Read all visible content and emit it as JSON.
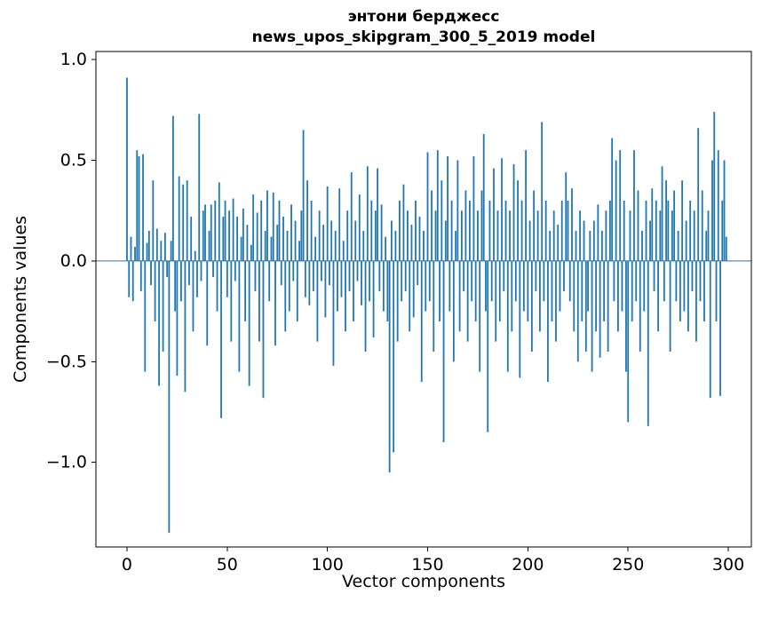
{
  "chart": {
    "title_line1": "энтони берджесс",
    "title_line2": "news_upos_skipgram_300_5_2019 model",
    "xlabel": "Vector components",
    "ylabel": "Components values"
  },
  "chart_data": {
    "type": "bar",
    "title": "энтони берджесс\nnews_upos_skipgram_300_5_2019 model",
    "xlabel": "Vector components",
    "ylabel": "Components values",
    "bar_color": "#1f77b4",
    "xlim": [
      -15.5,
      311.5
    ],
    "ylim": [
      -1.42,
      1.04
    ],
    "xticks": [
      0,
      50,
      100,
      150,
      200,
      250,
      300
    ],
    "yticks": [
      1.0,
      0.5,
      0.0,
      -0.5,
      -1.0
    ],
    "x_start": 0,
    "values": [
      0.91,
      -0.18,
      0.12,
      -0.2,
      0.07,
      0.55,
      0.52,
      -0.15,
      0.53,
      -0.55,
      0.09,
      0.15,
      -0.12,
      0.4,
      -0.3,
      0.16,
      -0.62,
      0.1,
      -0.45,
      0.14,
      -0.08,
      -1.35,
      0.1,
      0.72,
      -0.25,
      -0.57,
      0.42,
      -0.2,
      0.38,
      -0.65,
      0.4,
      -0.12,
      0.22,
      -0.35,
      0.05,
      -0.18,
      0.73,
      -0.1,
      0.25,
      0.28,
      -0.42,
      0.15,
      0.28,
      -0.08,
      0.3,
      -0.25,
      0.39,
      -0.78,
      0.22,
      0.3,
      -0.18,
      0.25,
      -0.4,
      0.31,
      -0.1,
      0.22,
      -0.55,
      0.12,
      0.26,
      -0.3,
      0.18,
      -0.62,
      0.08,
      0.33,
      -0.15,
      0.24,
      -0.4,
      0.3,
      -0.68,
      0.15,
      0.35,
      -0.2,
      0.12,
      0.34,
      -0.42,
      0.18,
      0.3,
      -0.12,
      0.22,
      -0.35,
      0.15,
      -0.25,
      0.28,
      -0.1,
      0.2,
      -0.3,
      0.1,
      0.25,
      0.65,
      -0.18,
      0.4,
      -0.22,
      0.3,
      -0.15,
      0.12,
      -0.4,
      0.25,
      -0.1,
      0.18,
      -0.28,
      0.37,
      -0.12,
      0.2,
      -0.52,
      0.15,
      -0.25,
      0.36,
      -0.18,
      0.1,
      -0.35,
      0.25,
      -0.15,
      0.44,
      -0.3,
      0.2,
      -0.1,
      0.33,
      -0.22,
      0.15,
      -0.45,
      0.47,
      -0.2,
      0.3,
      -0.38,
      0.25,
      0.46,
      -0.15,
      0.28,
      -0.25,
      0.12,
      -0.3,
      -1.05,
      0.2,
      -0.95,
      0.15,
      -0.4,
      0.3,
      -0.2,
      0.38,
      -0.15,
      0.25,
      -0.35,
      0.18,
      -0.28,
      0.3,
      -0.12,
      0.22,
      -0.6,
      0.15,
      -0.25,
      0.54,
      -0.2,
      0.35,
      -0.45,
      0.25,
      0.55,
      -0.3,
      0.4,
      -0.9,
      0.2,
      0.52,
      -0.25,
      0.3,
      -0.5,
      0.15,
      0.5,
      -0.35,
      0.25,
      -0.15,
      0.35,
      -0.4,
      0.3,
      -0.2,
      0.52,
      -0.3,
      0.25,
      -0.55,
      0.35,
      0.63,
      -0.25,
      -0.85,
      0.3,
      -0.2,
      0.46,
      -0.4,
      0.25,
      -0.3,
      0.51,
      -0.15,
      0.3,
      -0.55,
      0.25,
      -0.35,
      0.48,
      -0.2,
      0.4,
      -0.58,
      0.3,
      -0.25,
      0.55,
      -0.3,
      0.2,
      -0.45,
      0.35,
      -0.15,
      0.25,
      -0.35,
      0.69,
      -0.2,
      0.3,
      -0.6,
      0.15,
      -0.3,
      0.25,
      -0.4,
      0.18,
      -0.25,
      0.3,
      -0.15,
      0.44,
      0.3,
      -0.2,
      0.36,
      -0.35,
      0.15,
      -0.5,
      0.25,
      -0.3,
      0.2,
      -0.45,
      -0.25,
      0.15,
      -0.55,
      0.2,
      -0.35,
      0.28,
      -0.48,
      0.15,
      -0.3,
      0.25,
      -0.45,
      0.3,
      0.61,
      -0.2,
      0.5,
      -0.35,
      0.55,
      -0.25,
      0.3,
      -0.55,
      -0.8,
      0.25,
      -0.3,
      0.55,
      -0.2,
      0.35,
      -0.45,
      0.15,
      -0.25,
      0.3,
      -0.82,
      0.2,
      0.36,
      -0.15,
      0.3,
      -0.35,
      0.25,
      0.47,
      -0.2,
      0.4,
      0.3,
      -0.45,
      0.25,
      0.35,
      -0.2,
      0.15,
      -0.3,
      0.4,
      -0.25,
      0.2,
      -0.35,
      0.3,
      -0.15,
      0.25,
      -0.4,
      0.66,
      -0.2,
      0.35,
      -0.3,
      0.15,
      0.25,
      -0.68,
      0.5,
      0.74,
      -0.3,
      0.55,
      -0.67,
      0.3,
      0.5,
      0.12
    ]
  }
}
